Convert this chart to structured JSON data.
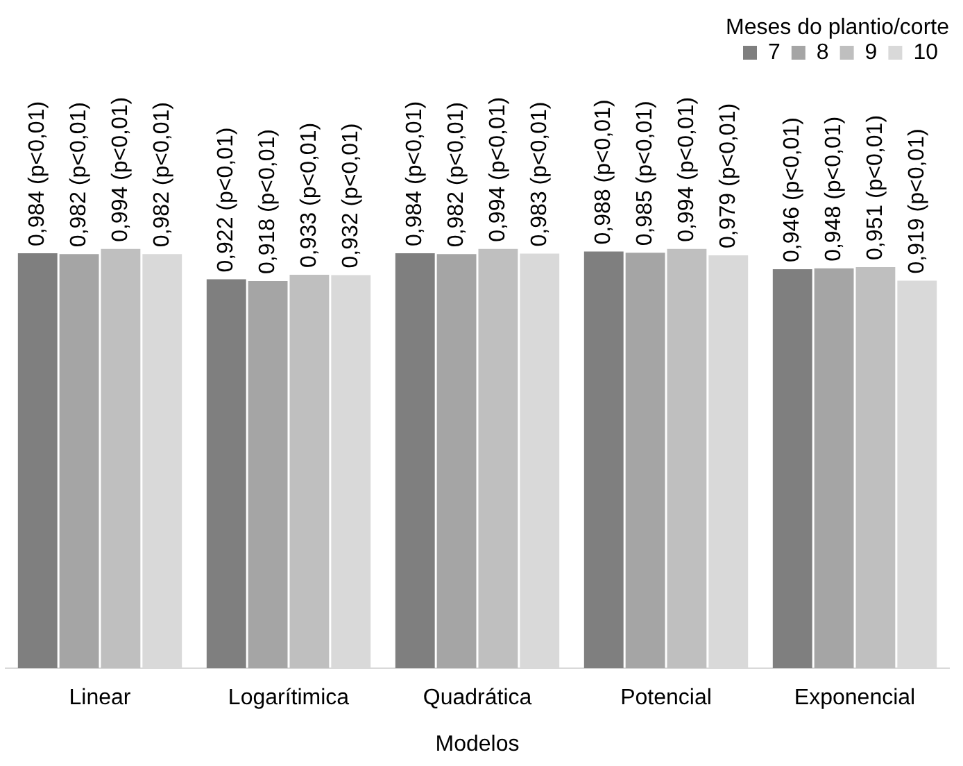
{
  "chart_data": {
    "type": "bar",
    "xlabel": "Modelos",
    "legend_title": "Meses do plantio/corte",
    "legend": "top right",
    "grid": false,
    "tick_labels": "x",
    "categories": [
      "Linear",
      "Logarítimica",
      "Quadrática",
      "Potencial",
      "Exponencial"
    ],
    "series": [
      {
        "name": "7",
        "color": "#7f7f7f",
        "values": [
          0.984,
          0.922,
          0.984,
          0.988,
          0.946
        ],
        "value_labels": [
          "0,984 (p<0,01)",
          "0,922 (p<0,01)",
          "0,984 (p<0,01)",
          "0,988 (p<0,01)",
          "0,946 (p<0,01)"
        ]
      },
      {
        "name": "8",
        "color": "#a5a5a5",
        "values": [
          0.982,
          0.918,
          0.982,
          0.985,
          0.948
        ],
        "value_labels": [
          "0,982 (p<0,01)",
          "0,918 (p<0,01)",
          "0,982 (p<0,01)",
          "0,985 (p<0,01)",
          "0,948 (p<0,01)"
        ]
      },
      {
        "name": "9",
        "color": "#bfbfbf",
        "values": [
          0.994,
          0.933,
          0.994,
          0.994,
          0.951
        ],
        "value_labels": [
          "0,994 (p<0,01)",
          "0,933 (p<0,01)",
          "0,994 (p<0,01)",
          "0,994 (p<0,01)",
          "0,951 (p<0,01)"
        ]
      },
      {
        "name": "10",
        "color": "#d9d9d9",
        "values": [
          0.982,
          0.932,
          0.983,
          0.979,
          0.919
        ],
        "value_labels": [
          "0,982 (p<0,01)",
          "0,932 (p<0,01)",
          "0,983 (p<0,01)",
          "0,979 (p<0,01)",
          "0,919 (p<0,01)"
        ]
      }
    ]
  }
}
